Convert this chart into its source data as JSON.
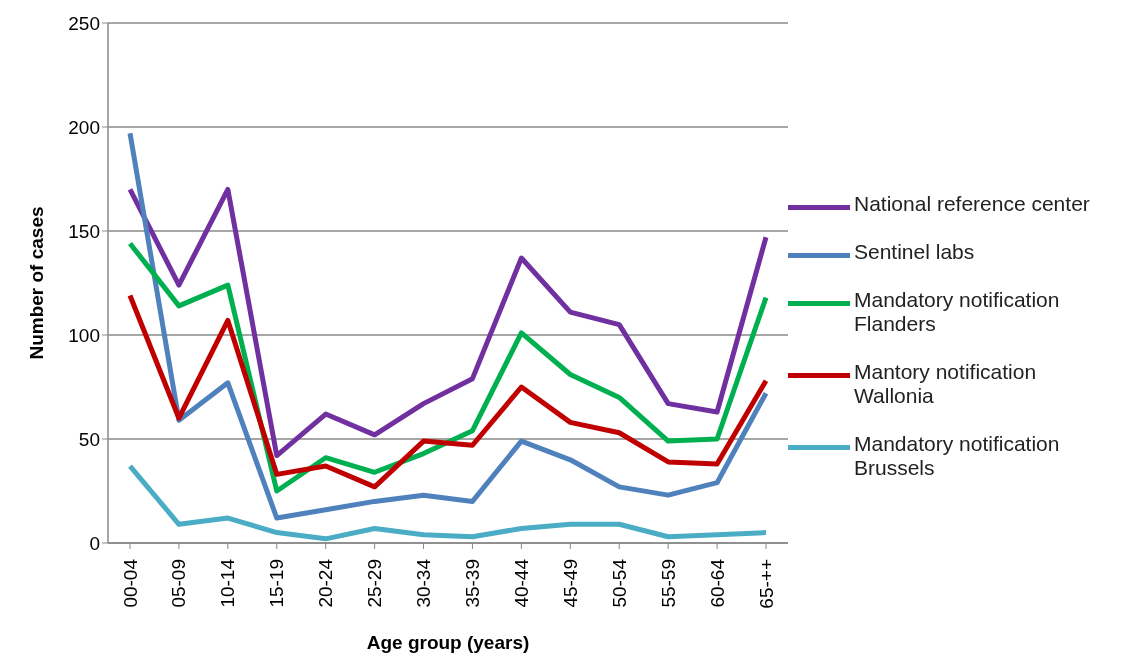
{
  "chart_data": {
    "type": "line",
    "xlabel": "Age group (years)",
    "ylabel": "Number of cases",
    "categories": [
      "00-04",
      "05-09",
      "10-14",
      "15-19",
      "20-24",
      "25-29",
      "30-34",
      "35-39",
      "40-44",
      "45-49",
      "50-54",
      "55-59",
      "60-64",
      "65-++"
    ],
    "series": [
      {
        "name": "National reference center",
        "color": "#7030a0",
        "values": [
          170,
          124,
          170,
          42,
          62,
          52,
          67,
          79,
          137,
          111,
          105,
          67,
          63,
          147
        ]
      },
      {
        "name": "Sentinel labs",
        "color": "#4f81bd",
        "values": [
          197,
          59,
          77,
          12,
          16,
          20,
          23,
          20,
          49,
          40,
          27,
          23,
          29,
          72
        ]
      },
      {
        "name": "Mandatory notification Flanders",
        "color": "#00b050",
        "values": [
          144,
          114,
          124,
          25,
          41,
          34,
          43,
          54,
          101,
          81,
          70,
          49,
          50,
          118
        ]
      },
      {
        "name": "Mantory notification Wallonia",
        "color": "#c00000",
        "values": [
          119,
          60,
          107,
          33,
          37,
          27,
          49,
          47,
          75,
          58,
          53,
          39,
          38,
          78
        ]
      },
      {
        "name": "Mandatory notification Brussels",
        "color": "#4bacc6",
        "values": [
          37,
          9,
          12,
          5,
          2,
          7,
          4,
          3,
          7,
          9,
          9,
          3,
          4,
          5
        ]
      }
    ],
    "ylim": [
      0,
      250
    ],
    "yticks": [
      0,
      50,
      100,
      150,
      200,
      250
    ],
    "grid": "y",
    "legend": "right",
    "marker": "none",
    "line_style": "solid"
  }
}
